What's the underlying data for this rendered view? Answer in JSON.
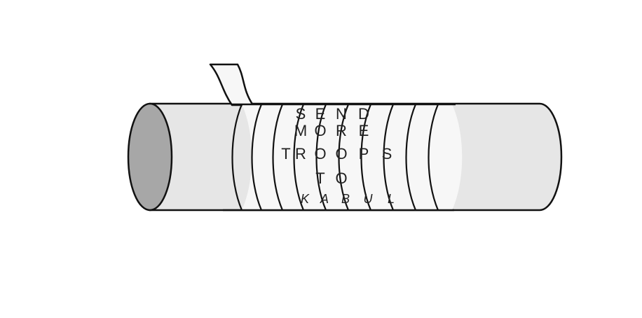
{
  "diagram": {
    "type": "scytale cipher illustration",
    "colors": {
      "cylinder_body": "#e6e6e6",
      "cylinder_end": "#a7a7a7",
      "strip": "#f7f7f7",
      "outline": "#111111",
      "text": "#222222"
    },
    "rows": [
      {
        "name": "row-1",
        "letters": [
          "S",
          "E",
          "N",
          "D"
        ],
        "columns": [
          1,
          2,
          3,
          4
        ]
      },
      {
        "name": "row-2",
        "letters": [
          "M",
          "O",
          "R",
          "E"
        ],
        "columns": [
          1,
          2,
          3,
          4
        ]
      },
      {
        "name": "row-3",
        "letters": [
          "T",
          "R",
          "O",
          "O",
          "P",
          "S"
        ],
        "columns": [
          0,
          1,
          2,
          3,
          4,
          5
        ]
      },
      {
        "name": "row-4",
        "letters": [
          "T",
          "O"
        ],
        "columns": [
          2,
          3
        ]
      },
      {
        "name": "row-5",
        "letters": [
          "K",
          "A",
          "B",
          "U",
          "L"
        ],
        "columns": [
          1,
          2,
          3,
          4,
          5
        ]
      }
    ]
  }
}
